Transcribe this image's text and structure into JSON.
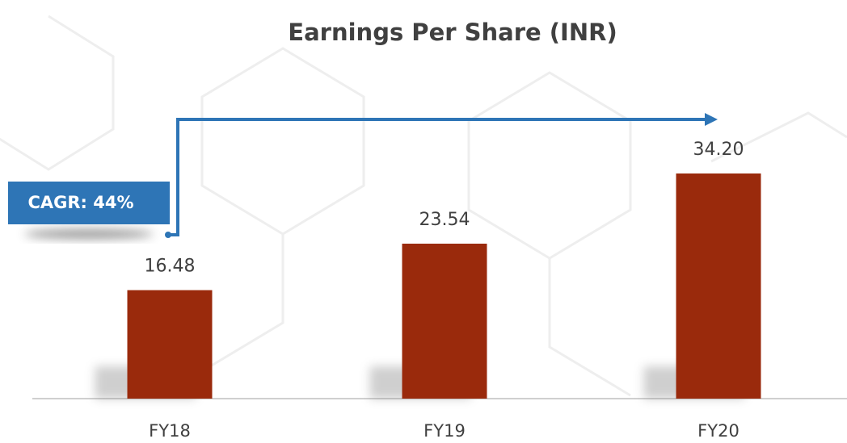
{
  "chart_data": {
    "type": "bar",
    "title": "Earnings Per Share (INR)",
    "categories": [
      "FY18",
      "FY19",
      "FY20"
    ],
    "values": [
      16.48,
      23.54,
      34.2
    ],
    "value_labels": [
      "16.48",
      "23.54",
      "34.20"
    ],
    "color": "#9a2a0c",
    "annotation": "CAGR: 44%"
  }
}
